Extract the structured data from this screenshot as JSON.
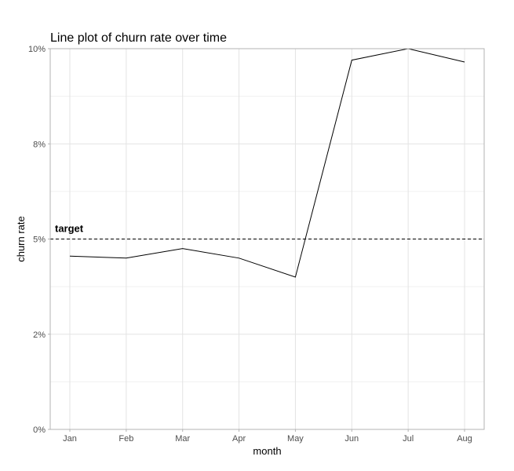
{
  "chart_data": {
    "type": "line",
    "title": "Line plot of churn rate over time",
    "xlabel": "month",
    "ylabel": "churn rate",
    "categories": [
      "Jan",
      "Feb",
      "Mar",
      "Apr",
      "May",
      "Jun",
      "Jul",
      "Aug"
    ],
    "series": [
      {
        "values": [
          4.55,
          4.5,
          4.75,
          4.5,
          4.0,
          9.7,
          10.0,
          9.65
        ],
        "color": "#000000"
      }
    ],
    "ylim": [
      0,
      10
    ],
    "y_ticks": [
      0,
      2.5,
      5,
      7.5,
      10
    ],
    "y_tick_labels": [
      "0%",
      "2%",
      "5%",
      "8%",
      "10%"
    ],
    "grid": true,
    "reference_line": {
      "value": 5,
      "style": "dashed",
      "label": "target"
    }
  }
}
